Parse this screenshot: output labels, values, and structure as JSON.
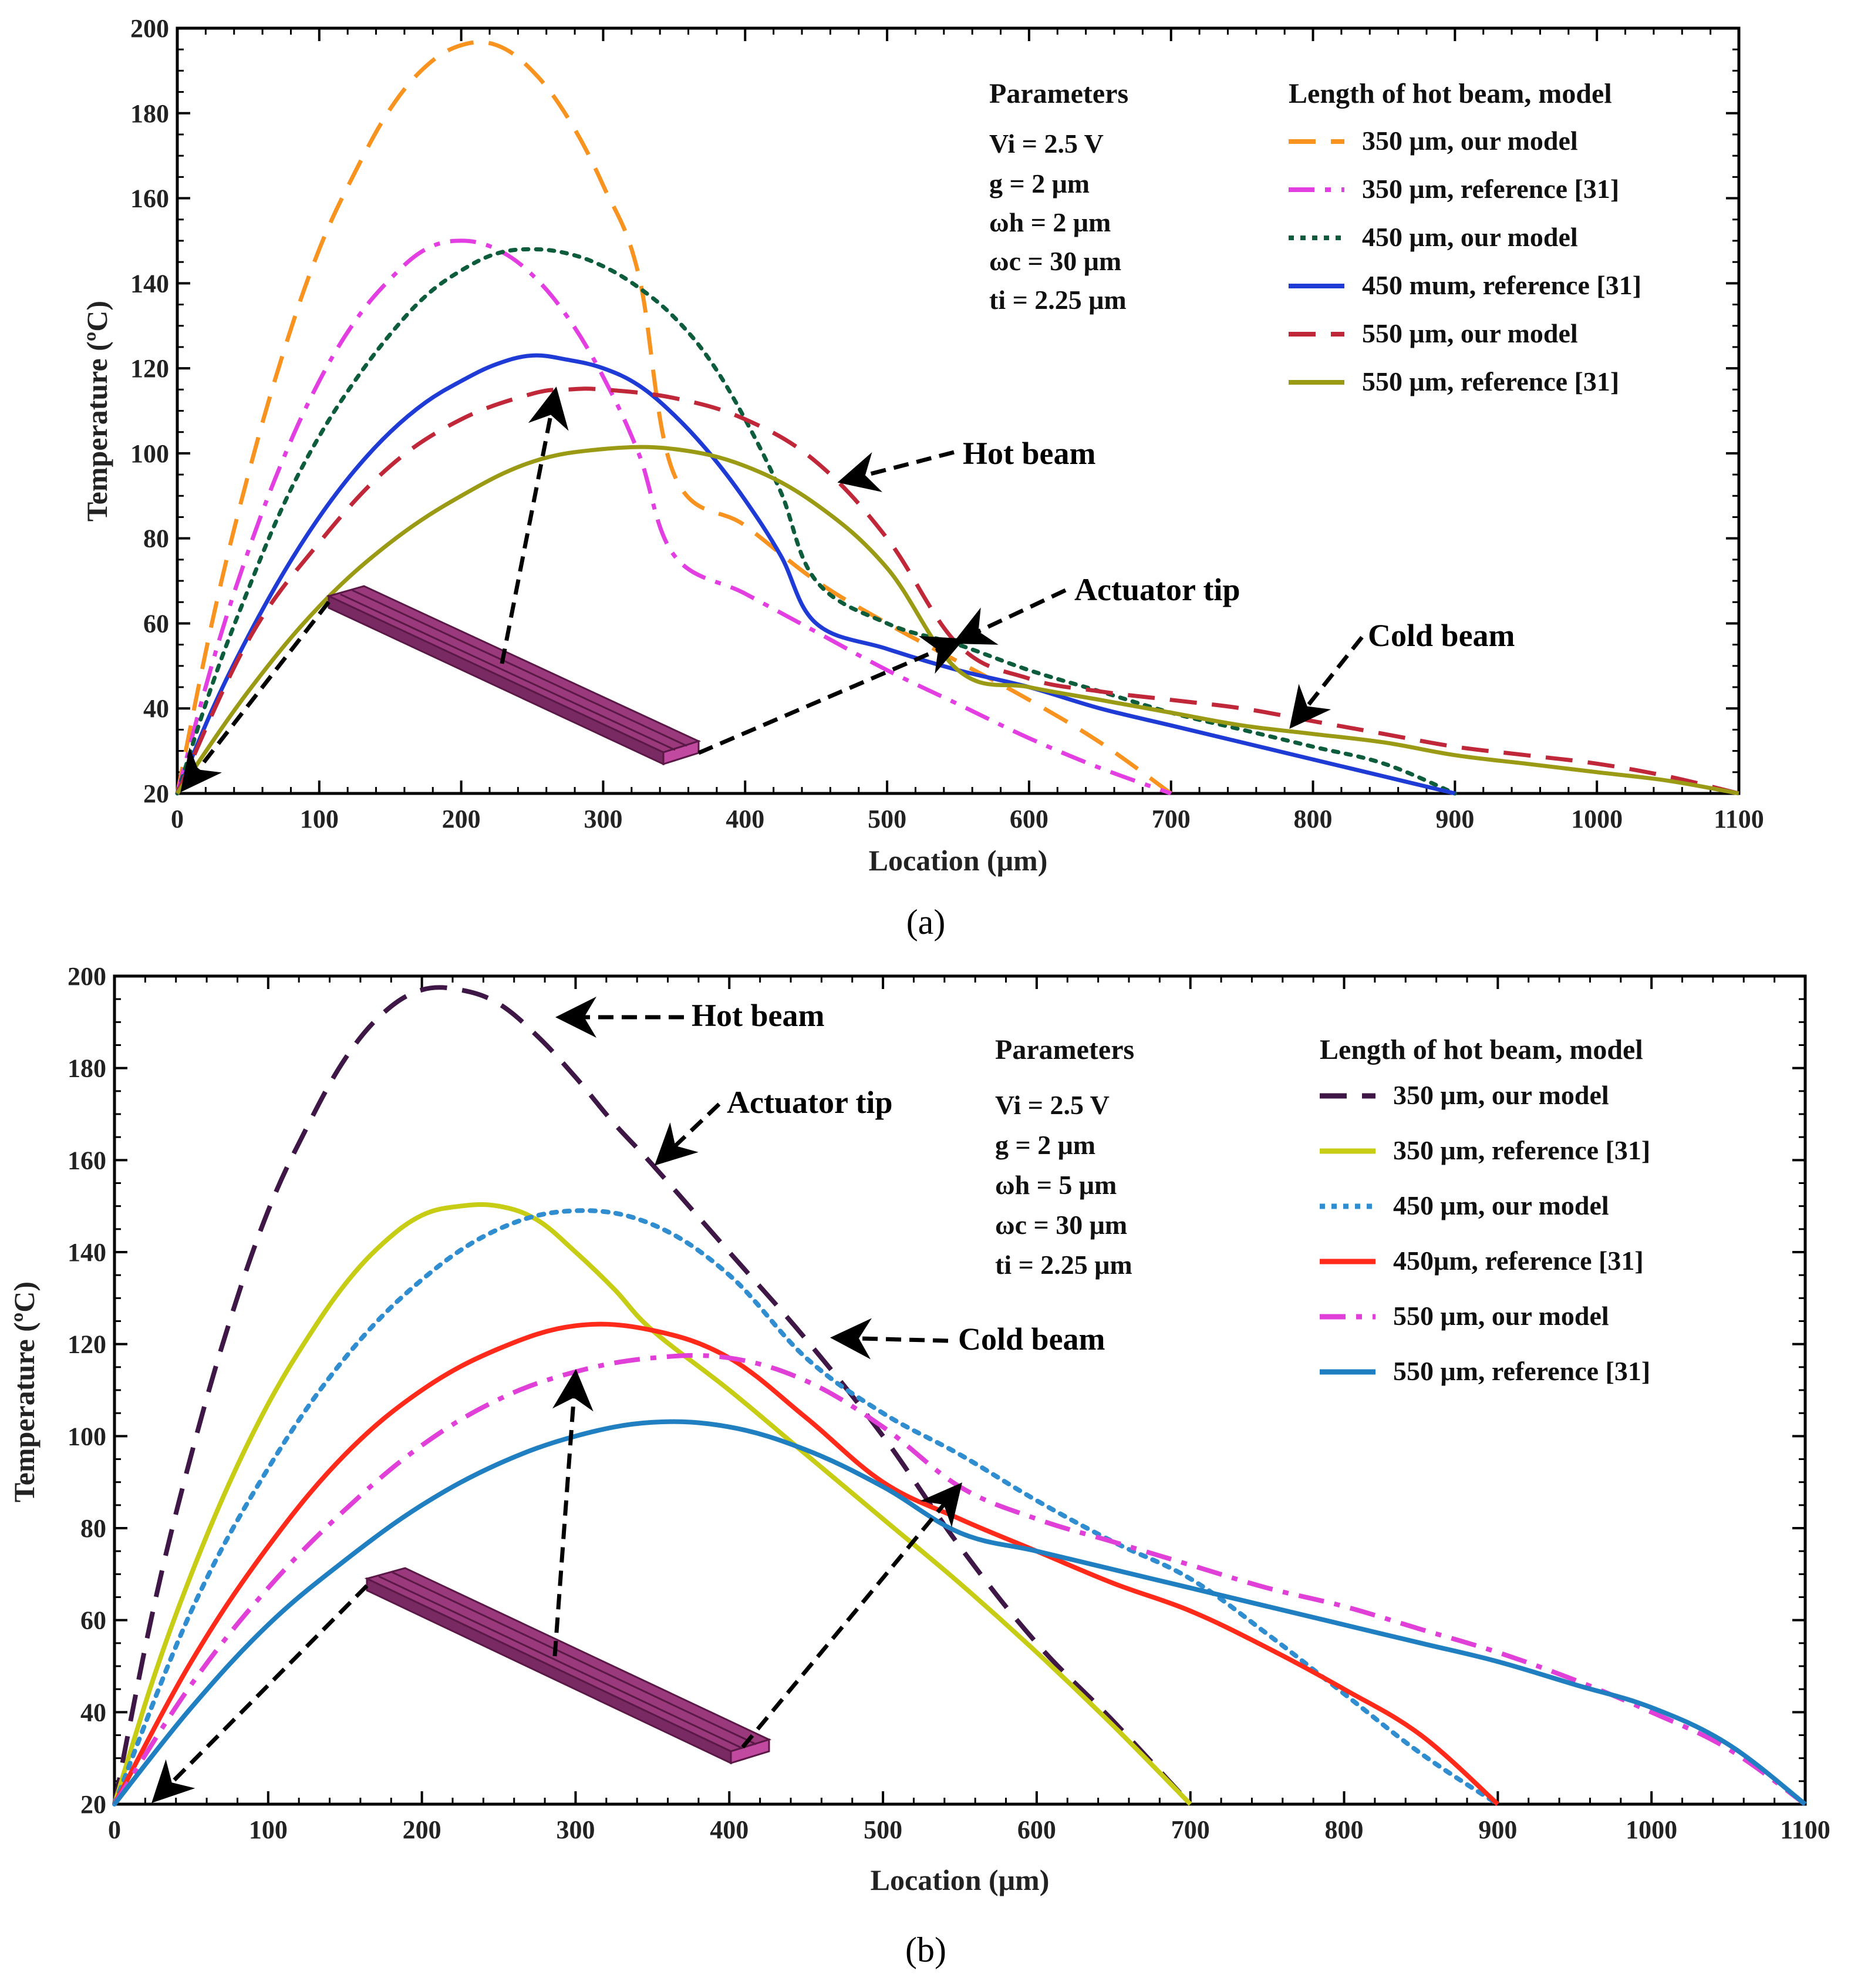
{
  "chart_data": [
    {
      "type": "line",
      "panel_label": "(a)",
      "xlabel": "Location (μm)",
      "ylabel": "Temperature (ºC)",
      "xlim": [
        0,
        1100
      ],
      "ylim": [
        20,
        200
      ],
      "xticks": [
        0,
        100,
        200,
        300,
        400,
        500,
        600,
        700,
        800,
        900,
        1000,
        1100
      ],
      "yticks": [
        20,
        40,
        60,
        80,
        100,
        120,
        140,
        160,
        180,
        200
      ],
      "parameters_title": "Parameters",
      "parameters": [
        "Vi = 2.5 V",
        "g = 2 μm",
        "ωh = 2 μm",
        "ωc = 30 μm",
        "ti = 2.25 μm"
      ],
      "legend_title": "Length of hot beam, model",
      "legend_position": "top-right",
      "annotations": [
        "Hot beam",
        "Actuator tip",
        "Cold beam"
      ],
      "series": [
        {
          "name": "350 μm, our model",
          "color": "#f7931e",
          "dash": "dash",
          "x": [
            0,
            25,
            50,
            75,
            100,
            125,
            150,
            175,
            200,
            225,
            250,
            275,
            300,
            325,
            350,
            400,
            450,
            500,
            550,
            600,
            650,
            700
          ],
          "y": [
            20,
            61,
            95,
            124,
            148,
            166,
            181,
            191,
            196,
            196,
            190,
            179,
            163,
            142,
            95,
            83,
            70,
            60,
            51,
            42,
            32,
            20
          ]
        },
        {
          "name": "350 μm, reference [31]",
          "color": "#e23ee2",
          "dash": "dashdot",
          "x": [
            0,
            25,
            50,
            75,
            100,
            125,
            150,
            175,
            200,
            225,
            250,
            275,
            300,
            325,
            350,
            400,
            450,
            500,
            550,
            600,
            650,
            700
          ],
          "y": [
            20,
            51,
            77,
            99,
            117,
            131,
            141,
            148,
            150,
            148,
            142,
            132,
            118,
            100,
            76,
            67,
            58,
            49,
            41,
            33,
            26,
            20
          ]
        },
        {
          "name": "450 μm, our model",
          "color": "#0d5c3c",
          "dash": "dot",
          "x": [
            0,
            25,
            50,
            75,
            100,
            125,
            150,
            175,
            200,
            225,
            250,
            275,
            300,
            325,
            350,
            375,
            400,
            425,
            450,
            500,
            550,
            600,
            650,
            700,
            750,
            800,
            850,
            900
          ],
          "y": [
            20,
            46,
            68,
            88,
            104,
            117,
            128,
            137,
            143,
            147,
            148,
            147,
            144,
            139,
            132,
            122,
            108,
            91,
            70,
            60,
            55,
            49,
            44,
            39,
            35,
            31,
            27,
            20
          ]
        },
        {
          "name": "450 mum, reference [31]",
          "color": "#1f3bd6",
          "dash": "solid",
          "x": [
            0,
            25,
            50,
            75,
            100,
            125,
            150,
            175,
            200,
            225,
            250,
            275,
            300,
            325,
            350,
            375,
            400,
            425,
            450,
            500,
            550,
            600,
            650,
            700,
            750,
            800,
            850,
            900
          ],
          "y": [
            20,
            40,
            57,
            72,
            85,
            96,
            105,
            112,
            117,
            121,
            123,
            122,
            120,
            116,
            109,
            100,
            89,
            76,
            60,
            54,
            49,
            45,
            40,
            36,
            32,
            28,
            24,
            20
          ]
        },
        {
          "name": "550 μm, our model",
          "color": "#c0283a",
          "dash": "dash",
          "x": [
            0,
            50,
            100,
            150,
            200,
            250,
            275,
            300,
            350,
            400,
            450,
            500,
            550,
            600,
            650,
            700,
            750,
            800,
            850,
            900,
            950,
            1000,
            1050,
            1100
          ],
          "y": [
            20,
            56,
            79,
            97,
            108,
            114,
            115,
            115,
            113,
            108,
            98,
            80,
            55,
            47,
            44,
            42,
            40,
            37,
            34,
            31,
            29,
            27,
            24,
            20
          ]
        },
        {
          "name": "550 μm, reference [31]",
          "color": "#9b9a14",
          "dash": "solid",
          "x": [
            0,
            50,
            100,
            150,
            200,
            250,
            300,
            350,
            400,
            450,
            500,
            550,
            600,
            650,
            700,
            750,
            800,
            850,
            900,
            950,
            1000,
            1050,
            1100
          ],
          "y": [
            20,
            44,
            64,
            79,
            90,
            98,
            101,
            101,
            97,
            88,
            73,
            49,
            45,
            42,
            39,
            36,
            34,
            32,
            29,
            27,
            25,
            23,
            20
          ]
        }
      ]
    },
    {
      "type": "line",
      "panel_label": "(b)",
      "xlabel": "Location (μm)",
      "ylabel": "Temperature (ºC)",
      "xlim": [
        0,
        1100
      ],
      "ylim": [
        20,
        200
      ],
      "xticks": [
        0,
        100,
        200,
        300,
        400,
        500,
        600,
        700,
        800,
        900,
        1000,
        1100
      ],
      "yticks": [
        20,
        40,
        60,
        80,
        100,
        120,
        140,
        160,
        180,
        200
      ],
      "parameters_title": "Parameters",
      "parameters": [
        "Vi = 2.5 V",
        "g = 2 μm",
        "ωh = 5 μm",
        "ωc = 30 μm",
        "ti = 2.25 μm"
      ],
      "legend_title": "Length of hot beam, model",
      "legend_position": "top-right",
      "annotations": [
        "Hot beam",
        "Actuator tip",
        "Cold beam"
      ],
      "series": [
        {
          "name": "350 μm, our model",
          "color": "#3e1746",
          "dash": "dash",
          "x": [
            0,
            25,
            50,
            75,
            100,
            125,
            150,
            175,
            200,
            225,
            250,
            275,
            300,
            325,
            350,
            400,
            450,
            500,
            550,
            600,
            650,
            700
          ],
          "y": [
            20,
            62,
            96,
            125,
            149,
            167,
            182,
            192,
            197,
            197,
            194,
            187,
            178,
            168,
            159,
            140,
            121,
            100,
            76,
            55,
            38,
            20
          ]
        },
        {
          "name": "350 μm, reference [31]",
          "color": "#c7cc14",
          "dash": "solid",
          "x": [
            0,
            25,
            50,
            75,
            100,
            125,
            150,
            175,
            200,
            225,
            250,
            275,
            300,
            325,
            350,
            400,
            450,
            500,
            550,
            600,
            650,
            700
          ],
          "y": [
            20,
            47,
            70,
            90,
            107,
            121,
            133,
            142,
            148,
            150,
            150,
            147,
            140,
            132,
            123,
            110,
            96,
            82,
            68,
            53,
            37,
            20
          ]
        },
        {
          "name": "450 μm, our model",
          "color": "#2f8dd0",
          "dash": "dot",
          "x": [
            0,
            50,
            100,
            150,
            200,
            250,
            300,
            350,
            400,
            450,
            500,
            550,
            600,
            650,
            700,
            750,
            800,
            850,
            900
          ],
          "y": [
            20,
            62,
            93,
            117,
            134,
            145,
            149,
            146,
            135,
            117,
            105,
            96,
            86,
            77,
            69,
            57,
            44,
            31,
            20
          ]
        },
        {
          "name": "450μm, reference [31]",
          "color": "#ff2a1a",
          "dash": "solid",
          "x": [
            0,
            50,
            100,
            150,
            200,
            250,
            300,
            350,
            400,
            450,
            500,
            550,
            600,
            650,
            700,
            750,
            800,
            850,
            900
          ],
          "y": [
            20,
            51,
            76,
            96,
            110,
            119,
            124,
            123,
            117,
            104,
            90,
            82,
            75,
            68,
            62,
            54,
            45,
            35,
            20
          ]
        },
        {
          "name": "550 μm, our model",
          "color": "#e040d8",
          "dash": "dashdot",
          "x": [
            0,
            50,
            100,
            150,
            200,
            250,
            300,
            350,
            400,
            450,
            500,
            550,
            600,
            650,
            700,
            750,
            800,
            850,
            900,
            950,
            1000,
            1050,
            1100
          ],
          "y": [
            20,
            46,
            67,
            84,
            98,
            108,
            114,
            117,
            117,
            112,
            102,
            89,
            82,
            77,
            72,
            67,
            63,
            58,
            53,
            47,
            40,
            32,
            20
          ]
        },
        {
          "name": "550 μm, reference [31]",
          "color": "#1f7fc0",
          "dash": "solid",
          "x": [
            0,
            50,
            100,
            150,
            200,
            250,
            300,
            350,
            400,
            450,
            500,
            550,
            600,
            650,
            700,
            750,
            800,
            850,
            900,
            950,
            1000,
            1050,
            1100
          ],
          "y": [
            20,
            41,
            59,
            73,
            85,
            94,
            100,
            103,
            102,
            97,
            89,
            79,
            75,
            71,
            67,
            63,
            59,
            55,
            51,
            46,
            41,
            33,
            20
          ]
        }
      ]
    }
  ]
}
